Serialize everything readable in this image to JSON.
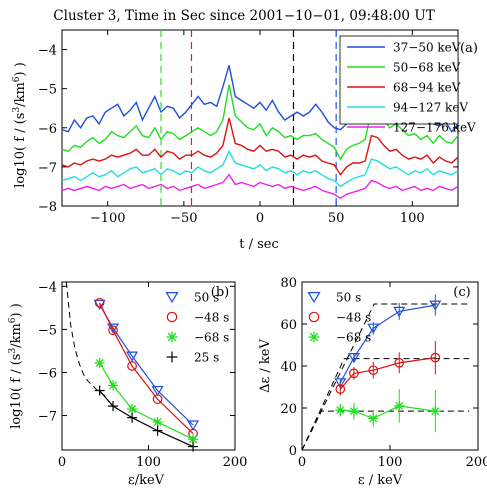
{
  "title": "Cluster 3, Time in Sec since 2001−10−01, 09:48:00 UT",
  "chart_data": [
    {
      "id": "a",
      "type": "line",
      "panel_label": "(a)",
      "xlabel": "t / sec",
      "ylabel": "log10( f / (s³/km⁶) )",
      "xlim": [
        -130,
        130
      ],
      "ylim": [
        -8,
        -3.5
      ],
      "xticks": [
        -100,
        -50,
        0,
        50,
        100
      ],
      "yticks": [
        -8,
        -7,
        -6,
        -5,
        -4
      ],
      "legend_placement": "top-right",
      "vlines": [
        {
          "x": -65,
          "color": "#33dd33"
        },
        {
          "x": -45,
          "color": "#dd2222"
        },
        {
          "x": 22,
          "color": "#000000"
        },
        {
          "x": 50,
          "color": "#2255ee"
        }
      ],
      "series": [
        {
          "name": "37−50 keV",
          "color": "#1f4fdc",
          "y": [
            -6.05,
            -6.1,
            -5.8,
            -6.0,
            -5.75,
            -5.7,
            -5.9,
            -5.6,
            -5.5,
            -5.4,
            -5.7,
            -5.55,
            -5.35,
            -5.8,
            -5.5,
            -5.2,
            -5.6,
            -5.45,
            -5.5,
            -5.75,
            -5.6,
            -5.4,
            -5.2,
            -5.4,
            -5.35,
            -5.45,
            -4.95,
            -4.4,
            -5.2,
            -5.3,
            -5.4,
            -5.5,
            -5.35,
            -5.55,
            -5.3,
            -5.6,
            -5.8,
            -5.7,
            -5.6,
            -5.7,
            -5.6,
            -5.4,
            -5.6,
            -5.85,
            -6.0,
            -6.05,
            -5.9,
            -5.75,
            -5.8,
            -5.55,
            -4.9,
            -4.95,
            -5.1,
            -5.4,
            -5.25,
            -5.5,
            -5.7,
            -5.55,
            -5.75,
            -5.8,
            -5.9,
            -5.95,
            -5.85,
            -6.1,
            -5.9
          ]
        },
        {
          "name": "50−68 keV",
          "color": "#22dd22",
          "y": [
            -6.55,
            -6.6,
            -6.45,
            -6.5,
            -6.35,
            -6.25,
            -6.4,
            -6.3,
            -6.1,
            -6.2,
            -6.25,
            -6.1,
            -5.95,
            -6.2,
            -6.25,
            -6.0,
            -6.3,
            -6.1,
            -6.15,
            -6.3,
            -6.2,
            -6.1,
            -6.0,
            -6.1,
            -6.2,
            -6.1,
            -5.8,
            -4.9,
            -5.7,
            -5.85,
            -6.0,
            -6.05,
            -5.9,
            -6.2,
            -6.0,
            -6.1,
            -6.25,
            -6.2,
            -6.3,
            -6.2,
            -6.2,
            -6.15,
            -6.3,
            -6.4,
            -6.5,
            -6.8,
            -6.55,
            -6.45,
            -6.4,
            -6.3,
            -5.55,
            -5.55,
            -5.8,
            -6.0,
            -5.9,
            -6.05,
            -6.2,
            -6.15,
            -6.3,
            -6.2,
            -6.4,
            -6.2,
            -6.35,
            -6.4,
            -6.2
          ]
        },
        {
          "name": "68−94 keV",
          "color": "#dd1111",
          "y": [
            -6.95,
            -7.0,
            -6.9,
            -6.95,
            -6.85,
            -6.8,
            -6.85,
            -6.8,
            -6.7,
            -6.75,
            -6.7,
            -6.65,
            -6.55,
            -6.7,
            -6.7,
            -6.55,
            -6.75,
            -6.6,
            -6.65,
            -6.8,
            -6.7,
            -6.7,
            -6.6,
            -6.7,
            -6.75,
            -6.65,
            -6.45,
            -5.75,
            -6.4,
            -6.45,
            -6.55,
            -6.6,
            -6.45,
            -6.6,
            -6.55,
            -6.6,
            -6.75,
            -6.7,
            -6.8,
            -6.7,
            -6.75,
            -6.7,
            -6.85,
            -6.9,
            -6.95,
            -7.2,
            -7.0,
            -6.9,
            -6.9,
            -6.85,
            -6.2,
            -6.25,
            -6.45,
            -6.6,
            -6.55,
            -6.7,
            -6.8,
            -6.75,
            -6.8,
            -6.7,
            -6.9,
            -6.75,
            -6.85,
            -6.9,
            -6.75
          ]
        },
        {
          "name": "94−127 keV",
          "color": "#22dddd",
          "y": [
            -7.35,
            -7.3,
            -7.25,
            -7.35,
            -7.25,
            -7.15,
            -7.25,
            -7.2,
            -7.1,
            -7.25,
            -7.15,
            -7.05,
            -7.0,
            -7.15,
            -7.1,
            -7.05,
            -7.2,
            -7.05,
            -7.1,
            -7.2,
            -7.1,
            -7.15,
            -7.0,
            -7.1,
            -7.15,
            -7.05,
            -6.95,
            -6.6,
            -6.9,
            -6.95,
            -7.0,
            -7.05,
            -6.95,
            -7.1,
            -7.0,
            -7.05,
            -7.15,
            -7.1,
            -7.2,
            -7.1,
            -7.15,
            -7.1,
            -7.2,
            -7.3,
            -7.35,
            -7.5,
            -7.4,
            -7.3,
            -7.25,
            -7.2,
            -6.8,
            -6.85,
            -6.95,
            -7.05,
            -7.0,
            -7.1,
            -7.2,
            -7.1,
            -7.15,
            -7.05,
            -7.2,
            -7.1,
            -7.15,
            -7.2,
            -7.1
          ]
        },
        {
          "name": "127−176 keV",
          "color": "#ee22ee",
          "y": [
            -7.6,
            -7.55,
            -7.6,
            -7.55,
            -7.5,
            -7.55,
            -7.6,
            -7.5,
            -7.55,
            -7.5,
            -7.45,
            -7.55,
            -7.5,
            -7.45,
            -7.55,
            -7.5,
            -7.45,
            -7.55,
            -7.5,
            -7.6,
            -7.55,
            -7.5,
            -7.45,
            -7.55,
            -7.5,
            -7.45,
            -7.4,
            -7.2,
            -7.45,
            -7.4,
            -7.45,
            -7.5,
            -7.4,
            -7.45,
            -7.5,
            -7.45,
            -7.55,
            -7.5,
            -7.55,
            -7.6,
            -7.55,
            -7.5,
            -7.6,
            -7.65,
            -7.7,
            -7.8,
            -7.7,
            -7.65,
            -7.6,
            -7.55,
            -7.35,
            -7.4,
            -7.5,
            -7.55,
            -7.5,
            -7.6,
            -7.55,
            -7.5,
            -7.6,
            -7.55,
            -7.6,
            -7.5,
            -7.55,
            -7.6,
            -7.5
          ]
        }
      ]
    },
    {
      "id": "b",
      "type": "line",
      "panel_label": "(b)",
      "xlabel": "ε/keV",
      "ylabel": "log10( f / (s³/km⁶) )",
      "xlim": [
        0,
        200
      ],
      "ylim": [
        -7.8,
        -3.9
      ],
      "xticks": [
        0,
        100,
        200
      ],
      "yticks": [
        -7,
        -6,
        -5,
        -4
      ],
      "legend_placement": "top-right",
      "dashed_curve": {
        "x": [
          5,
          10,
          15,
          20,
          25,
          30,
          40,
          50
        ],
        "y": [
          -3.9,
          -4.9,
          -5.45,
          -5.8,
          -6.05,
          -6.2,
          -6.4,
          -6.55
        ]
      },
      "series": [
        {
          "name": "50 s",
          "color": "#1f4fdc",
          "marker": "triangle-down",
          "x": [
            43.5,
            59,
            81,
            110.5,
            151.5
          ],
          "y": [
            -4.42,
            -4.97,
            -5.62,
            -6.42,
            -7.22
          ]
        },
        {
          "name": "−48 s",
          "color": "#dd1111",
          "marker": "circle",
          "x": [
            43.5,
            59,
            81,
            110.5,
            151.5
          ],
          "y": [
            -4.38,
            -5.02,
            -5.85,
            -6.62,
            -7.42
          ]
        },
        {
          "name": "−68 s",
          "color": "#22dd22",
          "marker": "asterisk",
          "x": [
            43.5,
            59,
            81,
            110.5,
            151.5
          ],
          "y": [
            -5.78,
            -6.3,
            -6.85,
            -7.15,
            -7.55
          ]
        },
        {
          "name": "25 s",
          "color": "#000000",
          "marker": "plus",
          "x": [
            43.5,
            59,
            81,
            110.5,
            151.5
          ],
          "y": [
            -6.42,
            -6.78,
            -7.05,
            -7.35,
            -7.72
          ]
        }
      ]
    },
    {
      "id": "c",
      "type": "line",
      "panel_label": "(c)",
      "xlabel": "ε / keV",
      "ylabel": "Δε / keV",
      "xlim": [
        0,
        200
      ],
      "ylim": [
        0,
        80
      ],
      "xticks": [
        0,
        100,
        200
      ],
      "yticks": [
        0,
        20,
        40,
        60,
        80
      ],
      "legend_placement": "top-left",
      "dashed_segments": [
        {
          "x": [
            0,
            22,
            190
          ],
          "y": [
            0,
            18.5,
            18.5
          ]
        },
        {
          "x": [
            0,
            48,
            190
          ],
          "y": [
            0,
            43.5,
            43.5
          ]
        },
        {
          "x": [
            0,
            82,
            190
          ],
          "y": [
            0,
            69.5,
            69.5
          ]
        }
      ],
      "series": [
        {
          "name": "50 s",
          "color": "#1f4fdc",
          "marker": "triangle-down",
          "x": [
            43.5,
            59,
            81,
            110.5,
            151.5
          ],
          "y": [
            32,
            44,
            58,
            66,
            69
          ],
          "err": [
            2,
            2,
            3,
            4,
            5
          ]
        },
        {
          "name": "−48 s",
          "color": "#dd1111",
          "marker": "circle",
          "x": [
            43.5,
            59,
            81,
            110.5,
            151.5
          ],
          "y": [
            29,
            36.5,
            38,
            41.5,
            44
          ],
          "err": [
            3,
            3,
            4,
            5,
            8
          ]
        },
        {
          "name": "−68 s",
          "color": "#22dd22",
          "marker": "asterisk",
          "x": [
            43.5,
            59,
            81,
            110.5,
            151.5
          ],
          "y": [
            19,
            18.5,
            15,
            21,
            18.5
          ],
          "err": [
            3,
            4,
            4,
            8,
            10
          ]
        }
      ]
    }
  ]
}
